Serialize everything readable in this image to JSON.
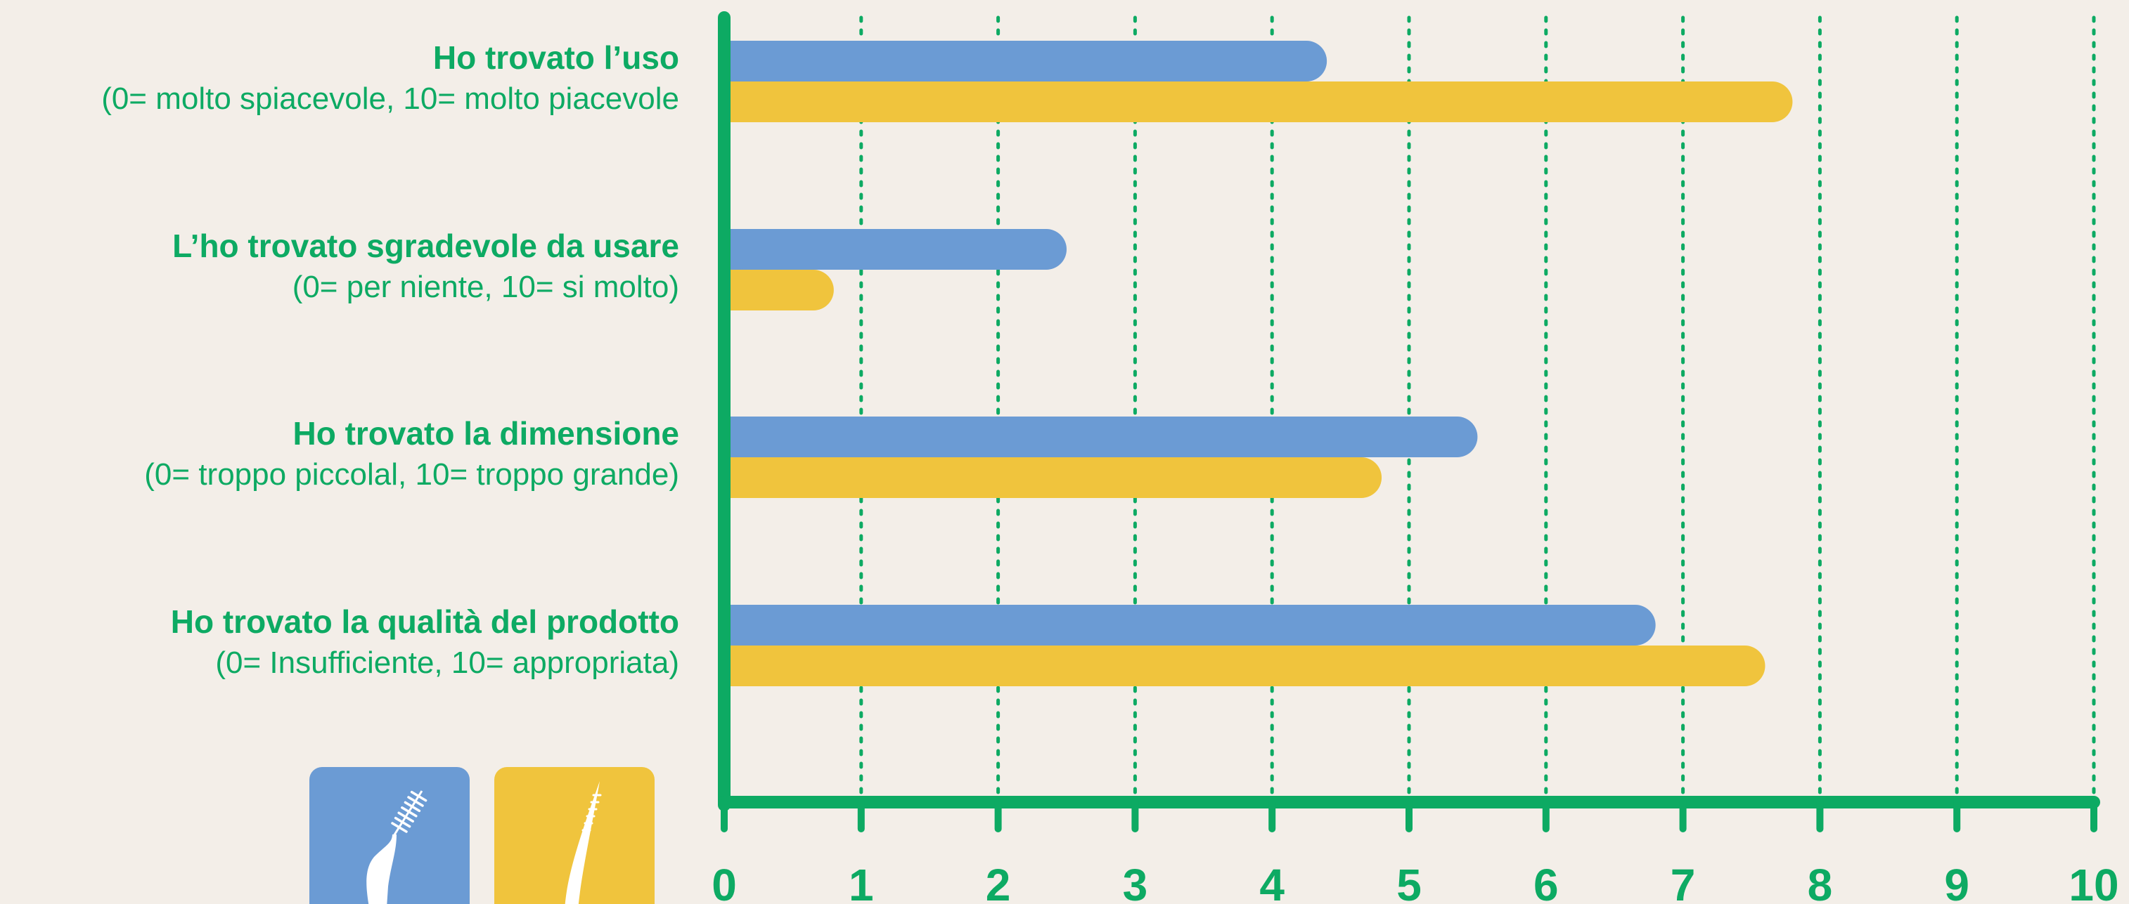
{
  "colors": {
    "background": "#f3eee8",
    "axis": "#0daa63",
    "text": "#0daa63",
    "series_1": "#6b9bd4",
    "series_2": "#f0c43d",
    "icon_fg": "#ffffff"
  },
  "legend": [
    {
      "icon": "interdental-brush-icon",
      "color": "#6b9bd4"
    },
    {
      "icon": "toothpick-brush-icon",
      "color": "#f0c43d"
    }
  ],
  "chart_data": {
    "type": "bar",
    "orientation": "horizontal",
    "categories": [
      {
        "title": "Ho trovato l’uso",
        "subtitle": "(0= molto spiacevole, 10= molto piacevole"
      },
      {
        "title": "L’ho trovato sgradevole da usare",
        "subtitle": "(0= per niente, 10= si molto)"
      },
      {
        "title": "Ho trovato la dimensione",
        "subtitle": "(0= troppo piccolal, 10= troppo grande)"
      },
      {
        "title": "Ho trovato la qualità del prodotto",
        "subtitle": "(0= Insufficiente, 10= appropriata)"
      }
    ],
    "series": [
      {
        "color": "#6b9bd4",
        "values": [
          4.4,
          2.5,
          5.5,
          6.8
        ]
      },
      {
        "color": "#f0c43d",
        "values": [
          7.8,
          0.8,
          4.8,
          7.6
        ]
      }
    ],
    "xlim": [
      0,
      10
    ],
    "ticks": [
      "0",
      "1",
      "2",
      "3",
      "4",
      "5",
      "6",
      "7",
      "8",
      "9",
      "10"
    ],
    "grid": "vertical dotted",
    "legend_position": "bottom-left"
  }
}
